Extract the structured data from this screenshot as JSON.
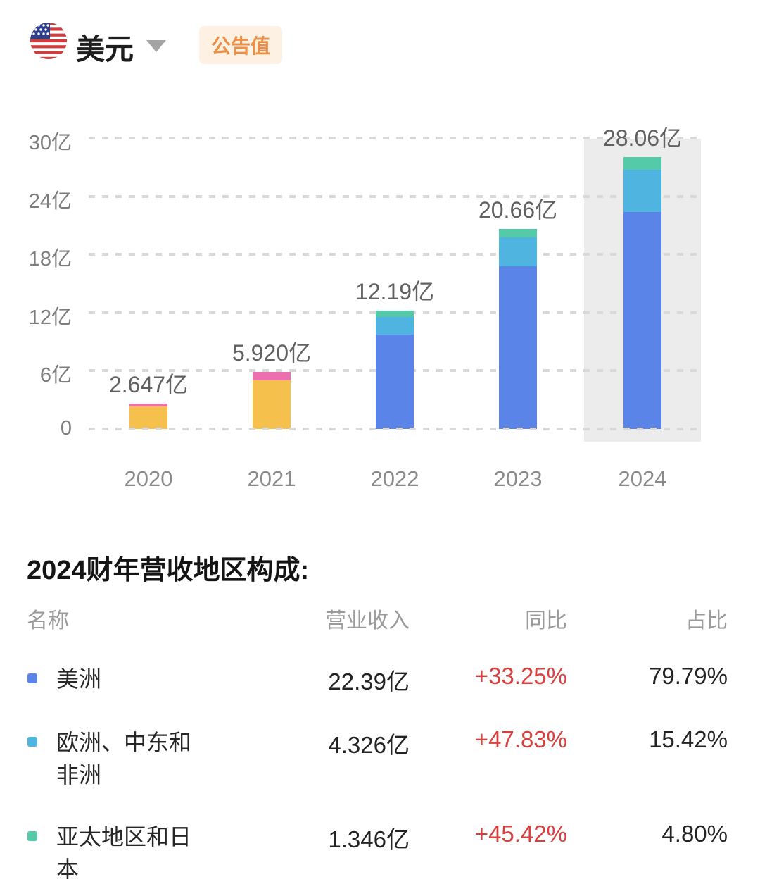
{
  "header": {
    "flag_icon": "us-flag",
    "currency": "美元",
    "badge": "公告值"
  },
  "chart_data": {
    "type": "bar",
    "stacked": true,
    "unit": "亿",
    "currency_context": "美元",
    "categories": [
      "2020",
      "2021",
      "2022",
      "2023",
      "2024"
    ],
    "totals": [
      2.647,
      5.92,
      12.19,
      20.66,
      28.06
    ],
    "bar_value_labels": [
      "2.647亿",
      "5.920亿",
      "12.19亿",
      "20.66亿",
      "28.06亿"
    ],
    "ylim": [
      0,
      30
    ],
    "grid": "dashed-horizontal",
    "legend_position": "none",
    "highlighted_category": "2024",
    "y_ticks": [
      {
        "value": 30,
        "label": "30亿"
      },
      {
        "value": 24,
        "label": "24亿"
      },
      {
        "value": 18,
        "label": "18亿"
      },
      {
        "value": 12,
        "label": "12亿"
      },
      {
        "value": 6,
        "label": "6亿"
      },
      {
        "value": 0,
        "label": "0"
      }
    ],
    "bars": [
      {
        "year": "2020",
        "label": "2.647亿",
        "highlighted": false,
        "segments": [
          {
            "name": "segment-amber",
            "color": "#f5c14c",
            "value": 2.29
          },
          {
            "name": "segment-pink",
            "color": "#ed70ae",
            "value": 0.36
          }
        ]
      },
      {
        "year": "2021",
        "label": "5.920亿",
        "highlighted": false,
        "segments": [
          {
            "name": "segment-amber",
            "color": "#f5c14c",
            "value": 4.98
          },
          {
            "name": "segment-pink",
            "color": "#ed70ae",
            "value": 0.94
          }
        ]
      },
      {
        "year": "2022",
        "label": "12.19亿",
        "highlighted": false,
        "segments": [
          {
            "name": "segment-americas",
            "color": "#5b84e8",
            "value": 9.74
          },
          {
            "name": "segment-emea",
            "color": "#4fb4df",
            "value": 1.8
          },
          {
            "name": "segment-apj",
            "color": "#55caa9",
            "value": 0.65
          }
        ]
      },
      {
        "year": "2023",
        "label": "20.66亿",
        "highlighted": false,
        "segments": [
          {
            "name": "segment-americas",
            "color": "#5b84e8",
            "value": 16.8
          },
          {
            "name": "segment-emea",
            "color": "#4fb4df",
            "value": 2.93
          },
          {
            "name": "segment-apj",
            "color": "#55caa9",
            "value": 0.93
          }
        ]
      },
      {
        "year": "2024",
        "label": "28.06亿",
        "highlighted": true,
        "segments": [
          {
            "name": "segment-americas",
            "color": "#5b84e8",
            "value": 22.39
          },
          {
            "name": "segment-emea",
            "color": "#4fb4df",
            "value": 4.326
          },
          {
            "name": "segment-apj",
            "color": "#55caa9",
            "value": 1.346
          }
        ]
      }
    ]
  },
  "composition": {
    "heading": "2024财年营收地区构成:",
    "columns": [
      "名称",
      "营业收入",
      "同比",
      "占比"
    ],
    "rows": [
      {
        "name": "美洲",
        "bullet_color": "#5b84e8",
        "revenue": "22.39亿",
        "yoy": "+33.25%",
        "share": "79.79%"
      },
      {
        "name": "欧洲、中东和非洲",
        "bullet_color": "#4fb4df",
        "revenue": "4.326亿",
        "yoy": "+47.83%",
        "share": "15.42%"
      },
      {
        "name": "亚太地区和日本",
        "bullet_color": "#55caa9",
        "revenue": "1.346亿",
        "yoy": "+45.42%",
        "share": "4.80%"
      }
    ]
  },
  "colors": {
    "yoy_red": "#d8403e",
    "badge_text": "#ea8f45",
    "badge_bg": "#fdf1e4",
    "highlight_band": "#ececec",
    "grid_line": "#d9d9d9",
    "axis_text": "#7d7d7d"
  }
}
